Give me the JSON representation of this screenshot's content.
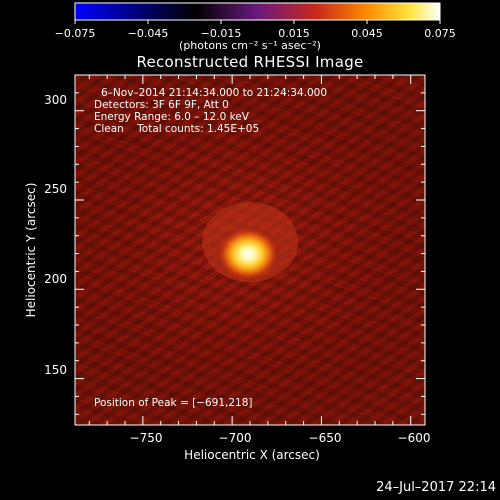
{
  "colorbar": {
    "ticks": [
      "−0.075",
      "−0.045",
      "−0.015",
      "0.015",
      "0.045",
      "0.075"
    ],
    "units_label": "(photons cm⁻² s⁻¹ asec⁻²)",
    "colormap": [
      "#0000ff",
      "#000000",
      "#6a1a7e",
      "#c8281c",
      "#ff8a00",
      "#ffe640",
      "#ffffff"
    ]
  },
  "plot": {
    "title": "Reconstructed RHESSI Image",
    "xlabel": "Heliocentric X (arcsec)",
    "ylabel": "Heliocentric Y (arcsec)",
    "x_ticks": [
      "−750",
      "−700",
      "−650",
      "−600"
    ],
    "y_ticks": [
      "300",
      "250",
      "200",
      "150"
    ],
    "x_range": [
      -788,
      -592
    ],
    "y_range": [
      124,
      320
    ]
  },
  "annotation": {
    "time_range": "6–Nov–2014 21:14:34.000 to 21:24:34.000",
    "detectors": "Detectors: 3F 6F 9F, Att 0",
    "energy": "Energy Range: 6.0 – 12.0 keV",
    "method": "Clean    Total counts: 1.45E+05",
    "peak": "Position of Peak = [−691,218]"
  },
  "footer": {
    "timestamp": "24–Jul–2017 22:14"
  },
  "source": {
    "peak_x": -691,
    "peak_y": 218
  }
}
